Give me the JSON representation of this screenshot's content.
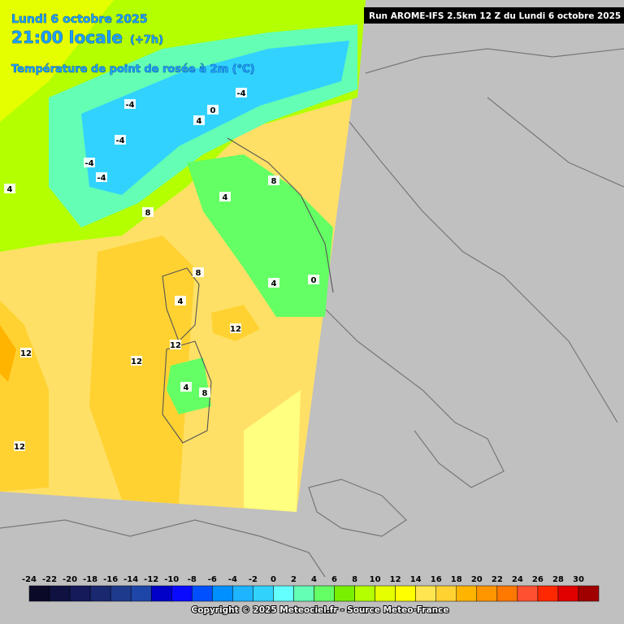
{
  "header": {
    "date": "Lundi 6 octobre 2025",
    "time": "21:00 locale",
    "offset": "(+7h)",
    "variable": "Température de point de rosée à 2m (°C)",
    "run": "Run AROME-IFS 2.5km 12 Z du Lundi 6 octobre 2025"
  },
  "map": {
    "contour_labels": [
      "4",
      "-4",
      "0",
      "-4",
      "4",
      "-4",
      "-4",
      "-4",
      "8",
      "4",
      "8",
      "8",
      "4",
      "0",
      "4",
      "12",
      "12",
      "12",
      "12",
      "4",
      "8",
      "12"
    ]
  },
  "legend": {
    "ticks": [
      -24,
      -22,
      -20,
      -18,
      -16,
      -14,
      -12,
      -10,
      -8,
      -6,
      -4,
      -2,
      0,
      2,
      4,
      6,
      8,
      10,
      12,
      14,
      16,
      18,
      20,
      22,
      24,
      26,
      28,
      30
    ],
    "colors": [
      "#0a0a28",
      "#0f1240",
      "#141a5a",
      "#1a2870",
      "#1e3a8c",
      "#1e46a8",
      "#0000c8",
      "#0a0aff",
      "#0050ff",
      "#0090ff",
      "#1eb4ff",
      "#32d2ff",
      "#64ffff",
      "#64ffb4",
      "#64ff64",
      "#78f000",
      "#b4ff00",
      "#e6ff00",
      "#ffff00",
      "#ffe650",
      "#ffd232",
      "#ffb400",
      "#ff9600",
      "#ff7800",
      "#ff5032",
      "#ff2800",
      "#e00000",
      "#a00000"
    ]
  },
  "footer": {
    "copyright": "Copyright © 2025 Meteociel.fr - Source Meteo-France"
  }
}
